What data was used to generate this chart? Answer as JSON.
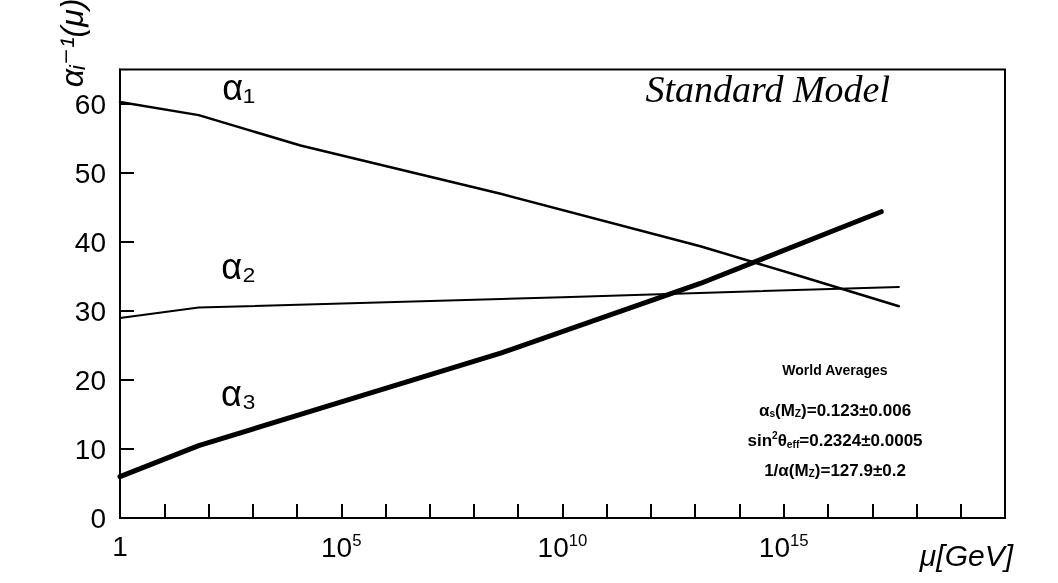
{
  "chart_data": {
    "type": "line",
    "title": "Standard Model",
    "xlabel": "μ[GeV]",
    "ylabel": "αᵢ⁻¹(μ)",
    "log": "x",
    "grid": false,
    "marker": "none",
    "line_style": "solid",
    "xlim": [
      1,
      100000000000000000000
    ],
    "ylim": [
      0,
      65
    ],
    "xticks": [
      {
        "value": 1,
        "label": "1"
      },
      {
        "value": 10,
        "label": null
      },
      {
        "value": 100,
        "label": null
      },
      {
        "value": 1000,
        "label": null
      },
      {
        "value": 10000,
        "label": null
      },
      {
        "value": 100000,
        "label": "10$^{5}$"
      },
      {
        "value": 1000000,
        "label": null
      },
      {
        "value": 10000000,
        "label": null
      },
      {
        "value": 100000000,
        "label": null
      },
      {
        "value": 1000000000,
        "label": null
      },
      {
        "value": 10000000000,
        "label": "10$^{10}$"
      },
      {
        "value": 100000000000,
        "label": null
      },
      {
        "value": 1000000000000,
        "label": null
      },
      {
        "value": 10000000000000,
        "label": null
      },
      {
        "value": 100000000000000,
        "label": null
      },
      {
        "value": 1000000000000000,
        "label": "10$^{15}$"
      },
      {
        "value": 10000000000000000,
        "label": null
      },
      {
        "value": 100000000000000000,
        "label": null
      },
      {
        "value": 1000000000000000000,
        "label": null
      },
      {
        "value": 10000000000000000000,
        "label": null
      }
    ],
    "yticks": [
      0,
      10,
      20,
      30,
      40,
      50,
      60
    ],
    "series": [
      {
        "name": "α₁",
        "color": "#000000",
        "x": [
          1,
          60,
          12000,
          400000000,
          13000000000000.0,
          2500000000000000.0,
          4e+17
        ],
        "values": [
          60.3,
          58.4,
          54,
          47,
          39.4,
          35,
          30.7
        ]
      },
      {
        "name": "α₂",
        "color": "#000000",
        "x": [
          1,
          60,
          10000000000.0,
          4e+17
        ],
        "values": [
          29,
          30.5,
          32,
          33.5
        ]
      },
      {
        "name": "α₃",
        "color": "#000000",
        "x": [
          1,
          60,
          400000000,
          13000000000000.0,
          1.6e+17
        ],
        "values": [
          6,
          10.5,
          23.9,
          34,
          44.4
        ]
      }
    ],
    "annotations": [
      "World Averages",
      "α$_{s}$(M$_{Z}$)=0.123±0.006",
      "sin$^{2}$θ$_{eff}$=0.2324±0.0005",
      "1/α(M$_{Z}$)=127.9±0.2"
    ]
  }
}
